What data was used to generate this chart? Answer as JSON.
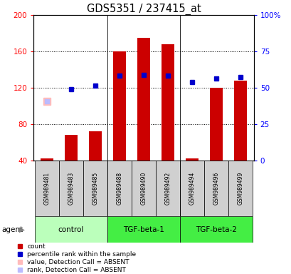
{
  "title": "GDS5351 / 237415_at",
  "samples": [
    "GSM989481",
    "GSM989483",
    "GSM989485",
    "GSM989488",
    "GSM989490",
    "GSM989492",
    "GSM989494",
    "GSM989496",
    "GSM989499"
  ],
  "groups": [
    {
      "label": "control",
      "color": "#bbffbb",
      "start": 0,
      "end": 2
    },
    {
      "label": "TGF-beta-1",
      "color": "#44ee44",
      "start": 3,
      "end": 5
    },
    {
      "label": "TGF-beta-2",
      "color": "#44ee44",
      "start": 6,
      "end": 8
    }
  ],
  "bar_values": [
    42,
    68,
    72,
    160,
    175,
    168,
    42,
    120,
    128
  ],
  "bar_bottom": 40,
  "bar_color": "#cc0000",
  "blue_square_values": [
    null,
    118,
    122,
    133,
    134,
    133,
    126,
    130,
    132
  ],
  "blue_square_color": "#0000cc",
  "absent_value_value": 105,
  "absent_value_index": 0,
  "absent_value_color": "#ffbbbb",
  "absent_rank_value": 105,
  "absent_rank_index": 0,
  "absent_rank_color": "#bbbbff",
  "ylim_left": [
    40,
    200
  ],
  "ylim_right": [
    0,
    100
  ],
  "yticks_left": [
    40,
    80,
    120,
    160,
    200
  ],
  "yticks_right": [
    0,
    25,
    50,
    75,
    100
  ],
  "ytick_labels_right": [
    "0",
    "25",
    "50",
    "75",
    "100%"
  ],
  "legend_items": [
    {
      "label": "count",
      "color": "#cc0000"
    },
    {
      "label": "percentile rank within the sample",
      "color": "#0000cc"
    },
    {
      "label": "value, Detection Call = ABSENT",
      "color": "#ffbbbb"
    },
    {
      "label": "rank, Detection Call = ABSENT",
      "color": "#bbbbff"
    }
  ],
  "bar_width": 0.55,
  "sample_box_color": "#d0d0d0",
  "grid_yticks": [
    80,
    120,
    160
  ]
}
